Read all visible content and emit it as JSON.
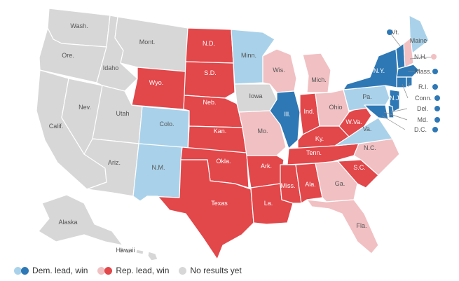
{
  "colors": {
    "dem_win": "#2e78b5",
    "dem_lead": "#a9d2ea",
    "rep_win": "#e2474a",
    "rep_lead": "#f1c0c3",
    "none": "#d7d7d7"
  },
  "states": [
    {
      "id": "wa",
      "label": "Wash.",
      "status": "none"
    },
    {
      "id": "or",
      "label": "Ore.",
      "status": "none"
    },
    {
      "id": "ca",
      "label": "Calif.",
      "status": "none"
    },
    {
      "id": "nv",
      "label": "Nev.",
      "status": "none"
    },
    {
      "id": "id",
      "label": "Idaho",
      "status": "none"
    },
    {
      "id": "mt",
      "label": "Mont.",
      "status": "none"
    },
    {
      "id": "wy",
      "label": "Wyo.",
      "status": "rep_win"
    },
    {
      "id": "ut",
      "label": "Utah",
      "status": "none"
    },
    {
      "id": "az",
      "label": "Ariz.",
      "status": "none"
    },
    {
      "id": "co",
      "label": "Colo.",
      "status": "dem_lead"
    },
    {
      "id": "nm",
      "label": "N.M.",
      "status": "dem_lead"
    },
    {
      "id": "nd",
      "label": "N.D.",
      "status": "rep_win"
    },
    {
      "id": "sd",
      "label": "S.D.",
      "status": "rep_win"
    },
    {
      "id": "ne",
      "label": "Neb.",
      "status": "rep_win"
    },
    {
      "id": "ks",
      "label": "Kan.",
      "status": "rep_win"
    },
    {
      "id": "ok",
      "label": "Okla.",
      "status": "rep_win"
    },
    {
      "id": "tx",
      "label": "Texas",
      "status": "rep_win"
    },
    {
      "id": "mn",
      "label": "Minn.",
      "status": "dem_lead"
    },
    {
      "id": "ia",
      "label": "Iowa",
      "status": "none"
    },
    {
      "id": "mo",
      "label": "Mo.",
      "status": "rep_lead"
    },
    {
      "id": "ar",
      "label": "Ark.",
      "status": "rep_win"
    },
    {
      "id": "la",
      "label": "La.",
      "status": "rep_win"
    },
    {
      "id": "wi",
      "label": "Wis.",
      "status": "rep_lead"
    },
    {
      "id": "il",
      "label": "Ill.",
      "status": "dem_win"
    },
    {
      "id": "mi",
      "label": "Mich.",
      "status": "rep_lead"
    },
    {
      "id": "in",
      "label": "Ind.",
      "status": "rep_win"
    },
    {
      "id": "oh",
      "label": "Ohio",
      "status": "rep_lead"
    },
    {
      "id": "ky",
      "label": "Ky.",
      "status": "rep_win"
    },
    {
      "id": "tn",
      "label": "Tenn.",
      "status": "rep_win"
    },
    {
      "id": "ms",
      "label": "Miss.",
      "status": "rep_win"
    },
    {
      "id": "al",
      "label": "Ala.",
      "status": "rep_win"
    },
    {
      "id": "ga",
      "label": "Ga.",
      "status": "rep_lead"
    },
    {
      "id": "fl",
      "label": "Fla.",
      "status": "rep_lead"
    },
    {
      "id": "sc",
      "label": "S.C.",
      "status": "rep_win"
    },
    {
      "id": "nc",
      "label": "N.C.",
      "status": "rep_lead"
    },
    {
      "id": "va",
      "label": "Va.",
      "status": "dem_lead"
    },
    {
      "id": "wv",
      "label": "W.Va.",
      "status": "rep_win"
    },
    {
      "id": "pa",
      "label": "Pa.",
      "status": "dem_lead"
    },
    {
      "id": "ny",
      "label": "N.Y.",
      "status": "dem_win"
    },
    {
      "id": "me",
      "label": "Maine",
      "status": "dem_lead"
    },
    {
      "id": "nj",
      "label": "N.J.",
      "status": "dem_win"
    },
    {
      "id": "md",
      "label": "",
      "status": "dem_win"
    },
    {
      "id": "de",
      "label": "",
      "status": "dem_win"
    },
    {
      "id": "vt_shape",
      "label": "",
      "status": "dem_win"
    },
    {
      "id": "nh_shape",
      "label": "",
      "status": "rep_lead"
    },
    {
      "id": "ma_shape",
      "label": "",
      "status": "dem_win"
    },
    {
      "id": "ct_shape",
      "label": "",
      "status": "dem_win"
    },
    {
      "id": "ri_shape",
      "label": "",
      "status": "dem_win"
    },
    {
      "id": "ak",
      "label": "Alaska",
      "status": "none"
    },
    {
      "id": "hi",
      "label": "",
      "status": "none"
    }
  ],
  "callouts": [
    {
      "id": "vt",
      "label": "Vt.",
      "status": "dem_win"
    },
    {
      "id": "nh",
      "label": "N.H.",
      "status": "rep_lead"
    },
    {
      "id": "ma",
      "label": "Mass.",
      "status": "dem_win"
    },
    {
      "id": "ri",
      "label": "R.I.",
      "status": "dem_win"
    },
    {
      "id": "ct",
      "label": "Conn.",
      "status": "dem_win"
    },
    {
      "id": "de",
      "label": "Del.",
      "status": "dem_win"
    },
    {
      "id": "md",
      "label": "Md.",
      "status": "dem_win"
    },
    {
      "id": "dc",
      "label": "D.C.",
      "status": "dem_win"
    }
  ],
  "hawaii_label": "Hawaii",
  "legend": [
    {
      "label": "Dem. lead, win",
      "colors": [
        "#a9d2ea",
        "#2e78b5"
      ]
    },
    {
      "label": "Rep. lead, win",
      "colors": [
        "#f1c0c3",
        "#e2474a"
      ]
    },
    {
      "label": "No results yet",
      "colors": [
        "#d7d7d7"
      ]
    }
  ]
}
